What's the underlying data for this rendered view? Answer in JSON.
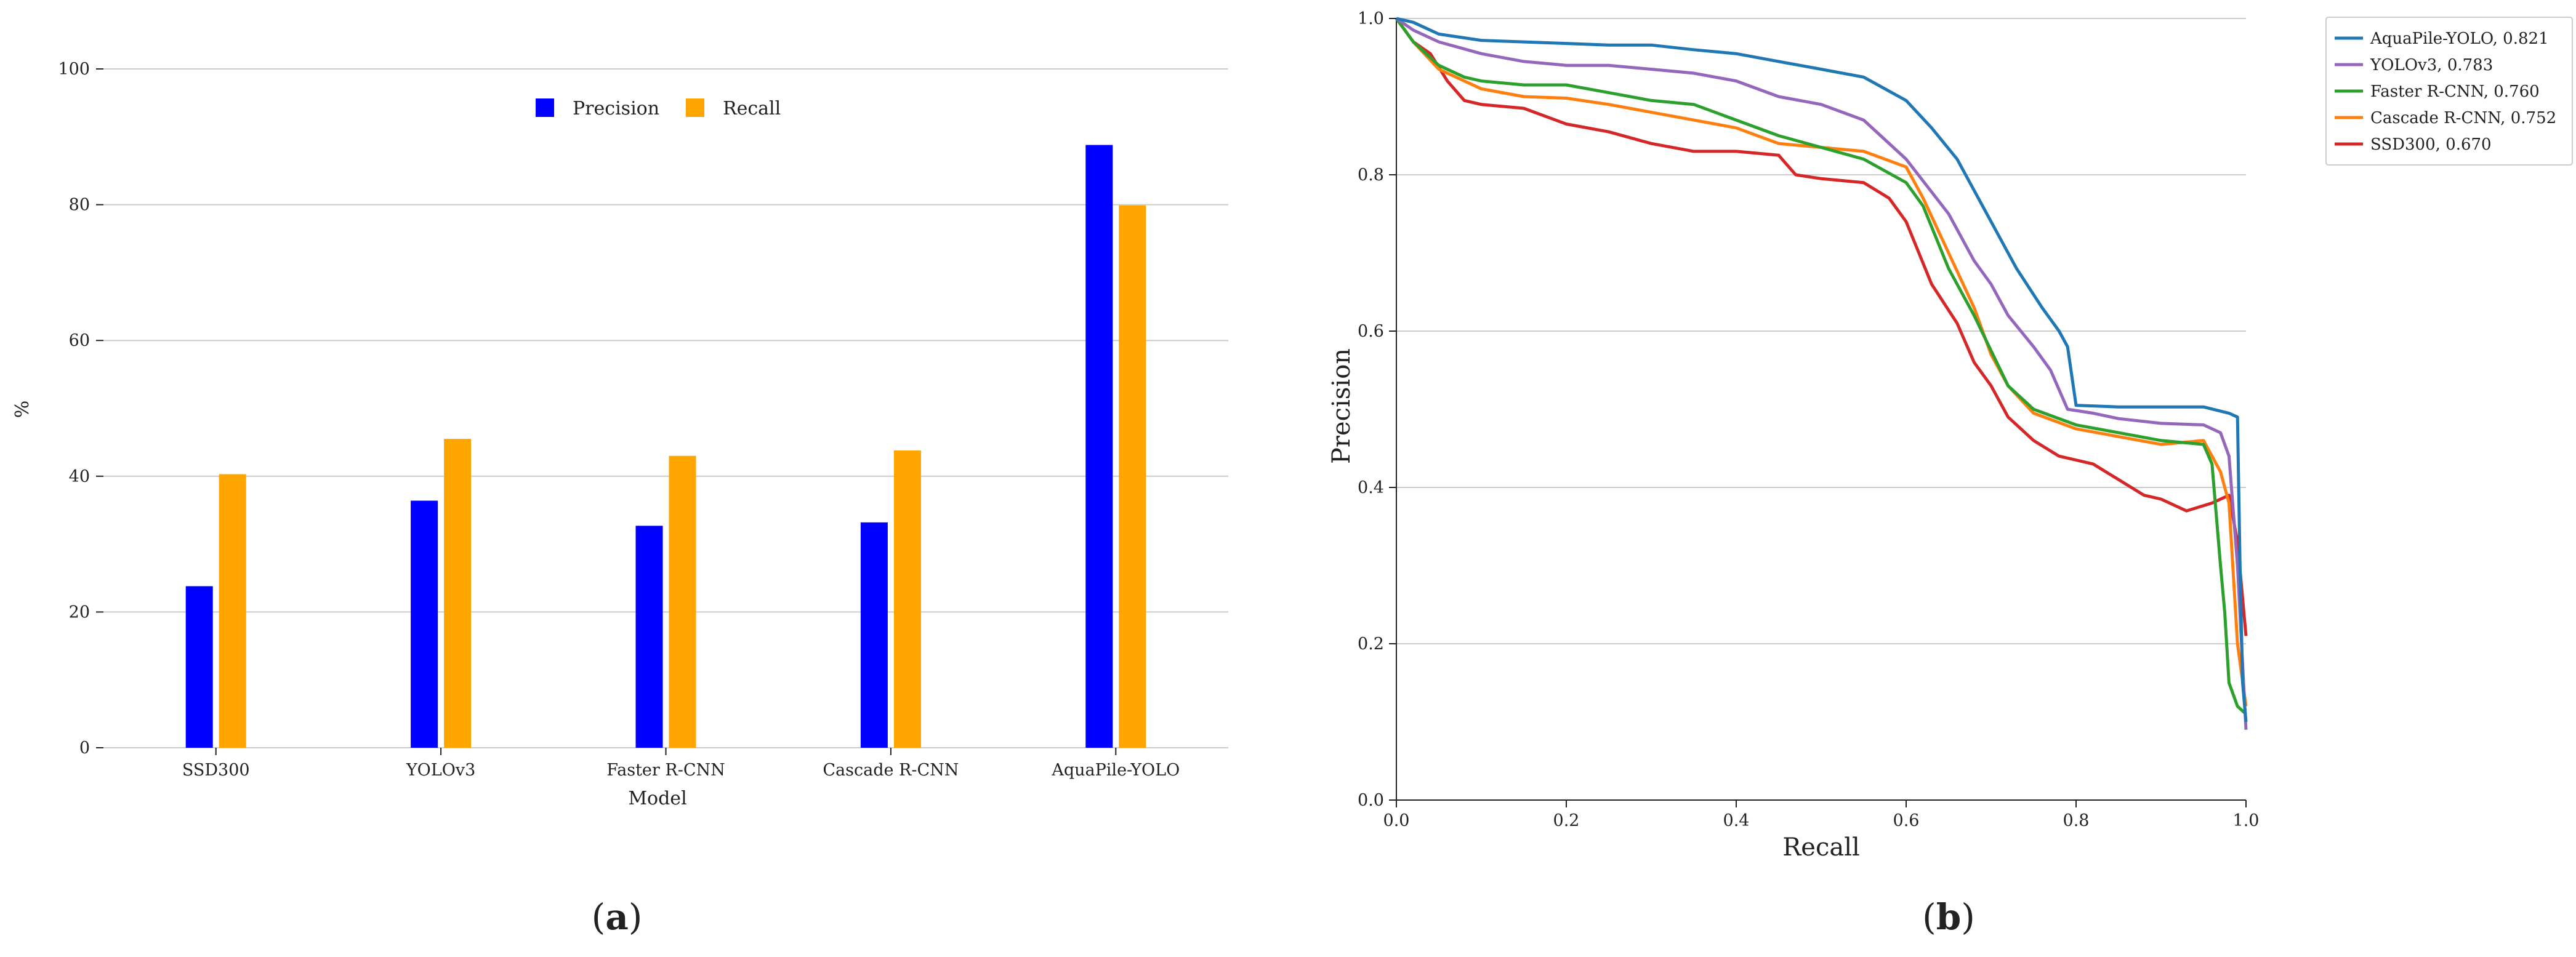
{
  "panels": {
    "a": {
      "label": "(a)",
      "bold_letter": "a"
    },
    "b": {
      "label": "(b)",
      "bold_letter": "b"
    }
  },
  "chart_data": [
    {
      "type": "bar",
      "panel": "a",
      "categories": [
        "SSD300",
        "YOLOv3",
        "Faster R-CNN",
        "Cascade R-CNN",
        "AquaPile-YOLO"
      ],
      "series": [
        {
          "name": "Precision",
          "color": "#0000ff",
          "values": [
            23.8,
            36.4,
            32.7,
            33.2,
            88.8
          ]
        },
        {
          "name": "Recall",
          "color": "#ffa500",
          "values": [
            40.3,
            45.5,
            43.0,
            43.8,
            79.9
          ]
        }
      ],
      "xlabel": "Model",
      "ylabel": "%",
      "ylim": [
        0,
        100
      ],
      "yticks": [
        "0",
        "20",
        "40",
        "60",
        "80",
        "100"
      ],
      "grid": "horizontal",
      "legend": "top-center"
    },
    {
      "type": "line",
      "panel": "b",
      "xlabel": "Recall",
      "ylabel": "Precision",
      "xlim": [
        0,
        1
      ],
      "ylim": [
        0,
        1
      ],
      "xticks": [
        "0.0",
        "0.2",
        "0.4",
        "0.6",
        "0.8",
        "1.0"
      ],
      "yticks": [
        "0.0",
        "0.2",
        "0.4",
        "0.6",
        "0.8",
        "1.0"
      ],
      "grid": "horizontal",
      "legend": "top-right",
      "series": [
        {
          "name": "AquaPile-YOLO, 0.821",
          "color": "#1f77b4",
          "points": [
            [
              0,
              1.0
            ],
            [
              0.02,
              0.995
            ],
            [
              0.03,
              0.99
            ],
            [
              0.05,
              0.98
            ],
            [
              0.1,
              0.972
            ],
            [
              0.2,
              0.968
            ],
            [
              0.25,
              0.966
            ],
            [
              0.3,
              0.966
            ],
            [
              0.35,
              0.96
            ],
            [
              0.4,
              0.955
            ],
            [
              0.45,
              0.945
            ],
            [
              0.5,
              0.935
            ],
            [
              0.55,
              0.925
            ],
            [
              0.6,
              0.895
            ],
            [
              0.63,
              0.86
            ],
            [
              0.66,
              0.82
            ],
            [
              0.7,
              0.74
            ],
            [
              0.73,
              0.68
            ],
            [
              0.76,
              0.63
            ],
            [
              0.78,
              0.6
            ],
            [
              0.79,
              0.58
            ],
            [
              0.8,
              0.505
            ],
            [
              0.85,
              0.503
            ],
            [
              0.9,
              0.503
            ],
            [
              0.95,
              0.503
            ],
            [
              0.98,
              0.495
            ],
            [
              0.99,
              0.49
            ],
            [
              0.993,
              0.3
            ],
            [
              0.996,
              0.15
            ],
            [
              1.0,
              0.1
            ]
          ]
        },
        {
          "name": "YOLOv3, 0.783",
          "color": "#9467bd",
          "points": [
            [
              0,
              1.0
            ],
            [
              0.02,
              0.985
            ],
            [
              0.05,
              0.97
            ],
            [
              0.1,
              0.955
            ],
            [
              0.15,
              0.945
            ],
            [
              0.2,
              0.94
            ],
            [
              0.25,
              0.94
            ],
            [
              0.3,
              0.935
            ],
            [
              0.35,
              0.93
            ],
            [
              0.4,
              0.92
            ],
            [
              0.45,
              0.9
            ],
            [
              0.5,
              0.89
            ],
            [
              0.55,
              0.87
            ],
            [
              0.6,
              0.82
            ],
            [
              0.65,
              0.75
            ],
            [
              0.68,
              0.69
            ],
            [
              0.7,
              0.66
            ],
            [
              0.72,
              0.62
            ],
            [
              0.75,
              0.58
            ],
            [
              0.77,
              0.55
            ],
            [
              0.79,
              0.5
            ],
            [
              0.82,
              0.495
            ],
            [
              0.85,
              0.488
            ],
            [
              0.9,
              0.482
            ],
            [
              0.95,
              0.48
            ],
            [
              0.97,
              0.47
            ],
            [
              0.98,
              0.44
            ],
            [
              0.99,
              0.3
            ],
            [
              1.0,
              0.09
            ]
          ]
        },
        {
          "name": "Faster R-CNN, 0.760",
          "color": "#2ca02c",
          "points": [
            [
              0,
              1.0
            ],
            [
              0.02,
              0.97
            ],
            [
              0.05,
              0.94
            ],
            [
              0.08,
              0.925
            ],
            [
              0.1,
              0.92
            ],
            [
              0.15,
              0.915
            ],
            [
              0.2,
              0.915
            ],
            [
              0.25,
              0.905
            ],
            [
              0.3,
              0.895
            ],
            [
              0.35,
              0.89
            ],
            [
              0.4,
              0.87
            ],
            [
              0.45,
              0.85
            ],
            [
              0.5,
              0.835
            ],
            [
              0.55,
              0.82
            ],
            [
              0.6,
              0.79
            ],
            [
              0.62,
              0.76
            ],
            [
              0.65,
              0.68
            ],
            [
              0.68,
              0.62
            ],
            [
              0.7,
              0.575
            ],
            [
              0.72,
              0.53
            ],
            [
              0.75,
              0.5
            ],
            [
              0.8,
              0.48
            ],
            [
              0.85,
              0.47
            ],
            [
              0.9,
              0.46
            ],
            [
              0.95,
              0.455
            ],
            [
              0.96,
              0.43
            ],
            [
              0.97,
              0.3
            ],
            [
              0.975,
              0.24
            ],
            [
              0.98,
              0.15
            ],
            [
              0.99,
              0.12
            ],
            [
              1.0,
              0.11
            ]
          ]
        },
        {
          "name": "Cascade R-CNN, 0.752",
          "color": "#ff7f0e",
          "points": [
            [
              0,
              1.0
            ],
            [
              0.02,
              0.97
            ],
            [
              0.05,
              0.935
            ],
            [
              0.1,
              0.91
            ],
            [
              0.15,
              0.9
            ],
            [
              0.2,
              0.898
            ],
            [
              0.25,
              0.89
            ],
            [
              0.3,
              0.88
            ],
            [
              0.35,
              0.87
            ],
            [
              0.4,
              0.86
            ],
            [
              0.45,
              0.84
            ],
            [
              0.5,
              0.835
            ],
            [
              0.55,
              0.83
            ],
            [
              0.6,
              0.81
            ],
            [
              0.62,
              0.77
            ],
            [
              0.65,
              0.7
            ],
            [
              0.68,
              0.63
            ],
            [
              0.7,
              0.57
            ],
            [
              0.72,
              0.53
            ],
            [
              0.75,
              0.495
            ],
            [
              0.8,
              0.475
            ],
            [
              0.85,
              0.465
            ],
            [
              0.9,
              0.455
            ],
            [
              0.95,
              0.46
            ],
            [
              0.97,
              0.42
            ],
            [
              0.98,
              0.38
            ],
            [
              0.99,
              0.2
            ],
            [
              1.0,
              0.12
            ]
          ]
        },
        {
          "name": "SSD300, 0.670",
          "color": "#d62728",
          "points": [
            [
              0,
              1.0
            ],
            [
              0.02,
              0.97
            ],
            [
              0.04,
              0.955
            ],
            [
              0.06,
              0.92
            ],
            [
              0.08,
              0.895
            ],
            [
              0.1,
              0.89
            ],
            [
              0.15,
              0.885
            ],
            [
              0.2,
              0.865
            ],
            [
              0.25,
              0.855
            ],
            [
              0.3,
              0.84
            ],
            [
              0.35,
              0.83
            ],
            [
              0.4,
              0.83
            ],
            [
              0.45,
              0.825
            ],
            [
              0.47,
              0.8
            ],
            [
              0.5,
              0.795
            ],
            [
              0.55,
              0.79
            ],
            [
              0.58,
              0.77
            ],
            [
              0.6,
              0.74
            ],
            [
              0.63,
              0.66
            ],
            [
              0.66,
              0.61
            ],
            [
              0.68,
              0.56
            ],
            [
              0.7,
              0.53
            ],
            [
              0.72,
              0.49
            ],
            [
              0.75,
              0.46
            ],
            [
              0.78,
              0.44
            ],
            [
              0.8,
              0.435
            ],
            [
              0.82,
              0.43
            ],
            [
              0.85,
              0.41
            ],
            [
              0.88,
              0.39
            ],
            [
              0.9,
              0.385
            ],
            [
              0.93,
              0.37
            ],
            [
              0.96,
              0.38
            ],
            [
              0.98,
              0.39
            ],
            [
              0.99,
              0.33
            ],
            [
              1.0,
              0.21
            ]
          ]
        }
      ]
    }
  ]
}
